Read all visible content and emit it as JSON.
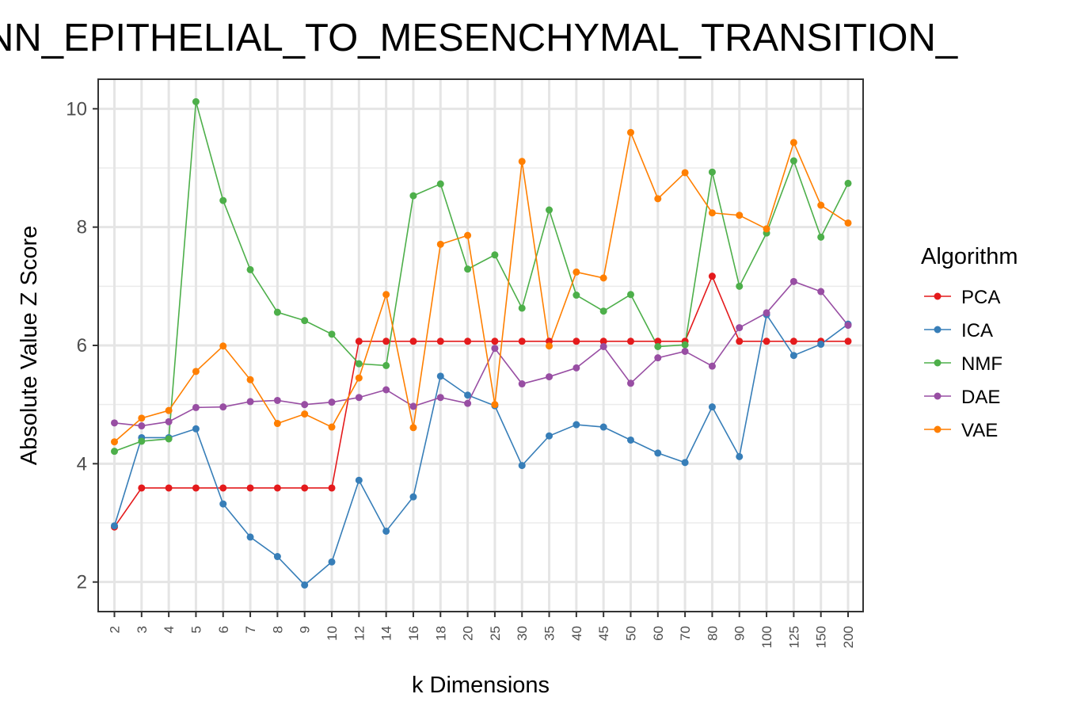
{
  "chart_data": {
    "type": "line",
    "title": "NN_EPITHELIAL_TO_MESENCHYMAL_TRANSITION_",
    "xlabel": "k Dimensions",
    "ylabel": "Absolute Value Z Score",
    "categories": [
      "2",
      "3",
      "4",
      "5",
      "6",
      "7",
      "8",
      "9",
      "10",
      "12",
      "14",
      "16",
      "18",
      "20",
      "25",
      "30",
      "35",
      "40",
      "45",
      "50",
      "60",
      "70",
      "80",
      "90",
      "100",
      "125",
      "150",
      "200"
    ],
    "ylim": [
      1.5,
      10.5
    ],
    "yticks": [
      2,
      4,
      6,
      8,
      10
    ],
    "grid": true,
    "legend": {
      "title": "Algorithm",
      "position": "right"
    },
    "series": [
      {
        "name": "PCA",
        "color": "#e41a1c",
        "values": [
          2.93,
          3.59,
          3.59,
          3.59,
          3.59,
          3.59,
          3.59,
          3.59,
          3.59,
          6.07,
          6.07,
          6.07,
          6.07,
          6.07,
          6.07,
          6.07,
          6.07,
          6.07,
          6.07,
          6.07,
          6.07,
          6.07,
          7.17,
          6.07,
          6.07,
          6.07,
          6.07,
          6.07
        ]
      },
      {
        "name": "ICA",
        "color": "#377eb8",
        "values": [
          2.95,
          4.44,
          4.44,
          4.59,
          3.32,
          2.76,
          2.43,
          1.95,
          2.34,
          3.72,
          2.86,
          3.44,
          5.48,
          5.16,
          4.98,
          3.97,
          4.47,
          4.66,
          4.62,
          4.4,
          4.18,
          4.02,
          4.96,
          4.12,
          6.52,
          5.83,
          6.02,
          6.36
        ]
      },
      {
        "name": "NMF",
        "color": "#4daf4a",
        "values": [
          4.21,
          4.38,
          4.42,
          10.12,
          8.45,
          7.28,
          6.56,
          6.42,
          6.19,
          5.69,
          5.66,
          8.53,
          8.73,
          7.29,
          7.53,
          6.63,
          8.29,
          6.85,
          6.58,
          6.86,
          5.98,
          6.01,
          8.93,
          7.0,
          7.9,
          9.12,
          7.83,
          8.74
        ]
      },
      {
        "name": "DAE",
        "color": "#984ea3",
        "values": [
          4.69,
          4.64,
          4.71,
          4.95,
          4.96,
          5.05,
          5.07,
          5.0,
          5.04,
          5.12,
          5.25,
          4.97,
          5.12,
          5.02,
          5.95,
          5.35,
          5.47,
          5.62,
          5.98,
          5.36,
          5.79,
          5.9,
          5.65,
          6.3,
          6.55,
          7.08,
          6.91,
          6.34
        ]
      },
      {
        "name": "VAE",
        "color": "#ff7f00",
        "values": [
          4.37,
          4.77,
          4.9,
          5.56,
          5.99,
          5.42,
          4.68,
          4.84,
          4.62,
          5.45,
          6.86,
          4.61,
          7.71,
          7.86,
          5.0,
          9.11,
          5.99,
          7.24,
          7.14,
          9.6,
          8.48,
          8.92,
          8.24,
          8.2,
          7.97,
          9.43,
          8.37,
          8.07
        ]
      }
    ]
  }
}
